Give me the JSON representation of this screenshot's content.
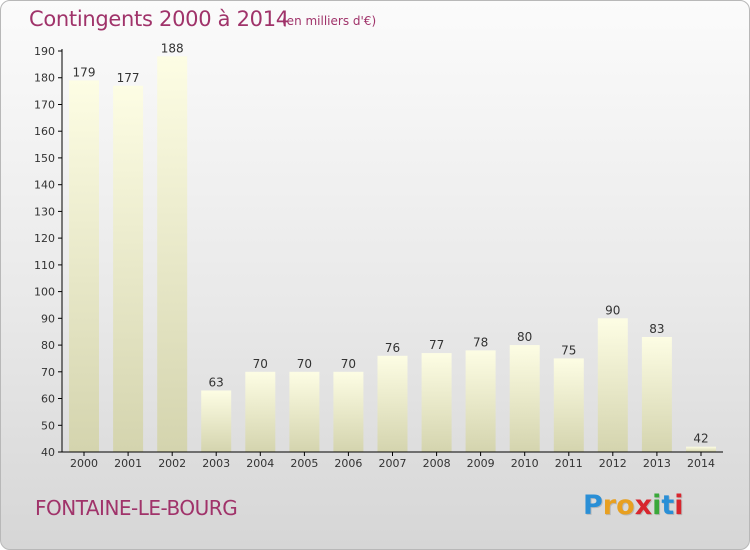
{
  "header": {
    "title": "Contingents 2000 à 2014",
    "subtitle": "(en milliers d'€)"
  },
  "footer": {
    "commune": "FONTAINE-LE-BOURG",
    "logo_letters": [
      "P",
      "r",
      "o",
      "x",
      "i",
      "t",
      "i"
    ],
    "logo_colors": [
      "#2a8fd6",
      "#e8a020",
      "#e8a020",
      "#d8262e",
      "#3aa83a",
      "#2a8fd6",
      "#d8262e"
    ]
  },
  "chart_data": {
    "type": "bar",
    "title": "Contingents 2000 à 2014",
    "subtitle": "(en milliers d'€)",
    "categories": [
      "2000",
      "2001",
      "2002",
      "2003",
      "2004",
      "2005",
      "2006",
      "2007",
      "2008",
      "2009",
      "2010",
      "2011",
      "2012",
      "2013",
      "2014"
    ],
    "values": [
      179,
      177,
      188,
      63,
      70,
      70,
      70,
      76,
      77,
      78,
      80,
      75,
      90,
      83,
      42
    ],
    "ylim": [
      40,
      190
    ],
    "yticks": [
      40,
      50,
      60,
      70,
      80,
      90,
      100,
      110,
      120,
      130,
      140,
      150,
      160,
      170,
      180,
      190
    ],
    "xlabel": "",
    "ylabel": "",
    "grid": false,
    "colors": {
      "bar_top": "#fdfde4",
      "bar_bottom": "#d4d4ae",
      "axis": "#000000",
      "text": "#333333"
    }
  }
}
